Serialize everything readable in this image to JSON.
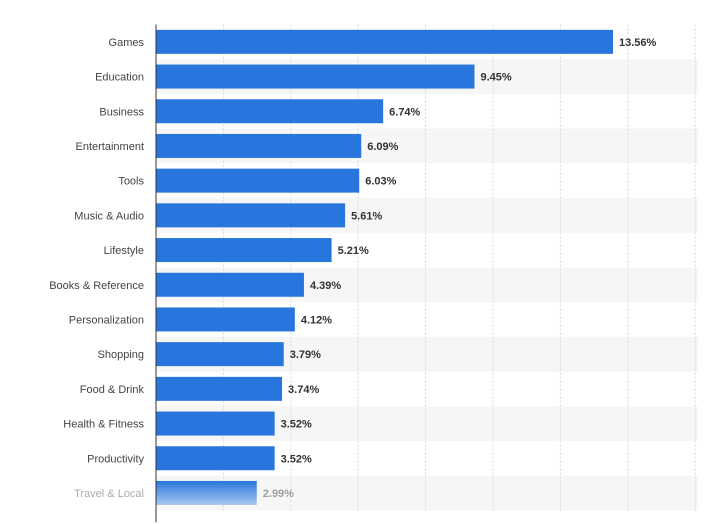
{
  "chart_data": {
    "type": "bar",
    "orientation": "horizontal",
    "categories": [
      "Games",
      "Education",
      "Business",
      "Entertainment",
      "Tools",
      "Music & Audio",
      "Lifestyle",
      "Books & Reference",
      "Personalization",
      "Shopping",
      "Food & Drink",
      "Health & Fitness",
      "Productivity",
      "Travel & Local"
    ],
    "values": [
      13.56,
      9.45,
      6.74,
      6.09,
      6.03,
      5.61,
      5.21,
      4.39,
      4.12,
      3.79,
      3.74,
      3.52,
      3.52,
      2.99
    ],
    "value_labels": [
      "13.56%",
      "9.45%",
      "6.74%",
      "6.09%",
      "6.03%",
      "5.61%",
      "5.21%",
      "4.39%",
      "4.12%",
      "3.79%",
      "3.74%",
      "3.52%",
      "3.52%",
      "2.99%"
    ],
    "title": "",
    "xlabel": "",
    "ylabel": "",
    "xlim": [
      0,
      16
    ],
    "grid": true,
    "legend": "none",
    "colors": {
      "bar": "#2876dd",
      "bar_fade_end": "#a9c8ef",
      "band": "#f6f6f6",
      "grid": "#d8d8d8",
      "axis": "#333333"
    }
  }
}
